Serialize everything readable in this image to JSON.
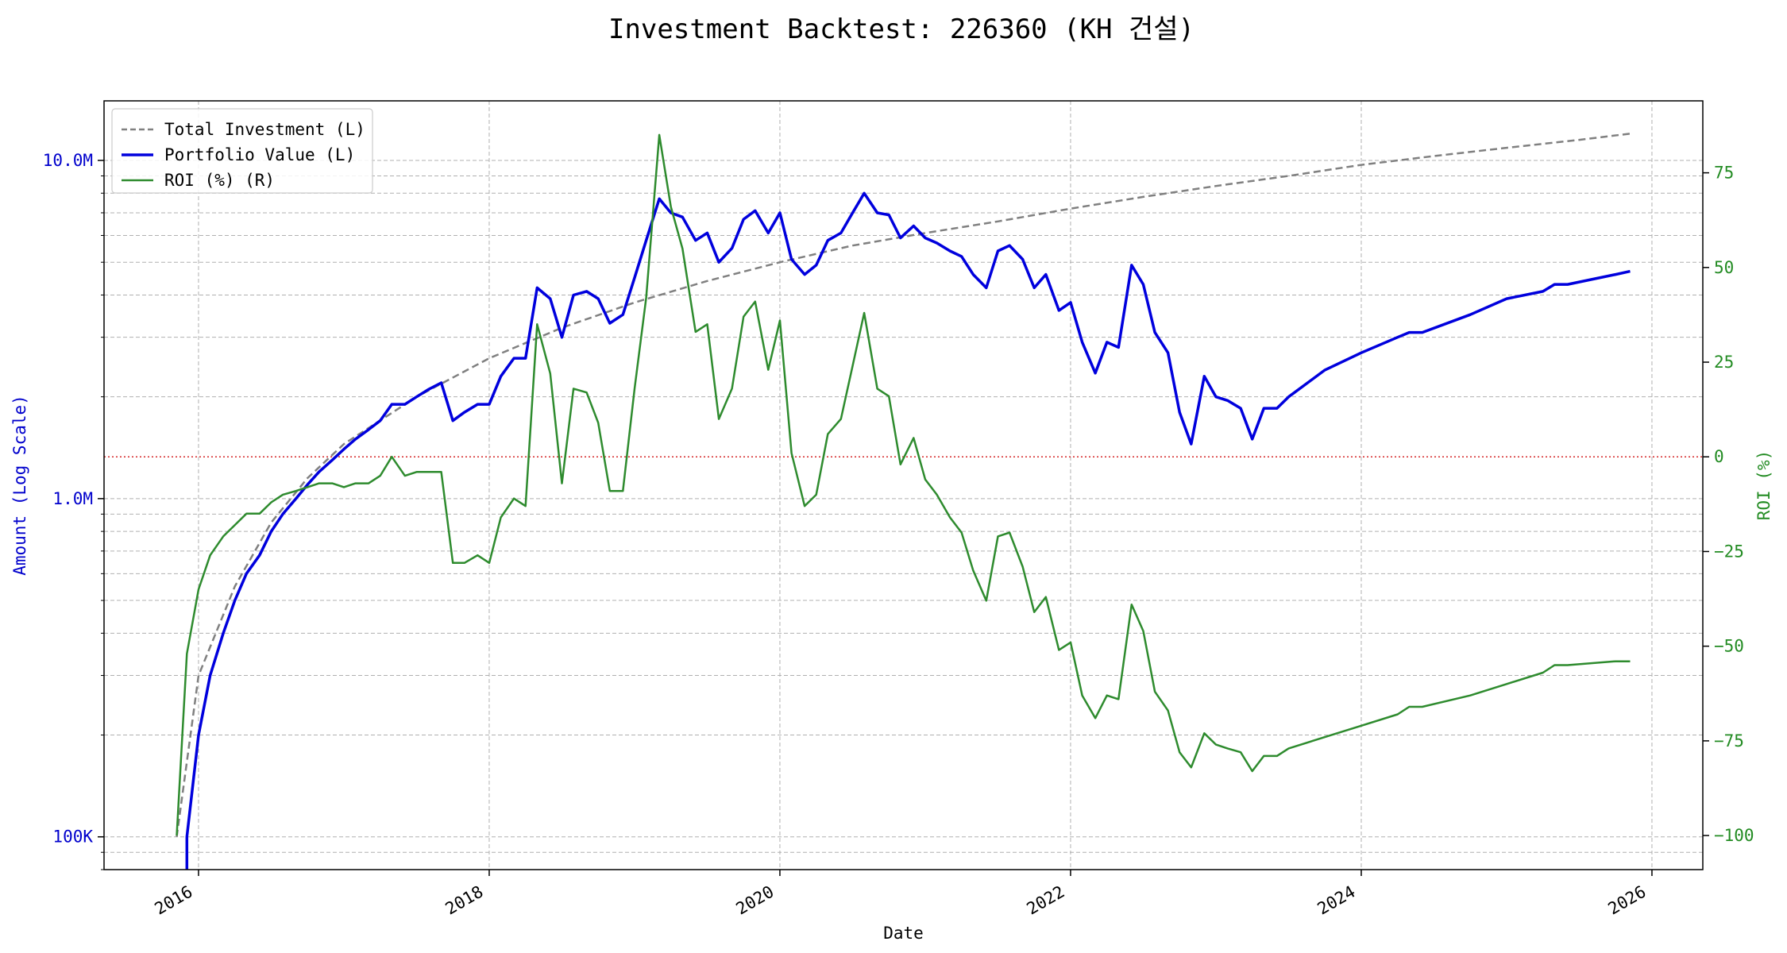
{
  "chart_data": {
    "type": "line",
    "title": "Investment Backtest: 226360 (KH 건설)",
    "xlabel": "Date",
    "ylabel_left": "Amount (Log Scale)",
    "ylabel_right": "ROI (%)",
    "left_scale": "log",
    "ylim_left": [
      80000,
      15000000
    ],
    "ylim_right": [
      -109,
      94
    ],
    "xlim": [
      2015.35,
      2026.35
    ],
    "x_ticks": [
      {
        "value": 2016,
        "label": "2016"
      },
      {
        "value": 2018,
        "label": "2018"
      },
      {
        "value": 2020,
        "label": "2020"
      },
      {
        "value": 2022,
        "label": "2022"
      },
      {
        "value": 2024,
        "label": "2024"
      },
      {
        "value": 2026,
        "label": "2026"
      }
    ],
    "y_left_ticks": [
      {
        "value": 100000,
        "label": "100K"
      },
      {
        "value": 1000000,
        "label": "1.0M"
      },
      {
        "value": 10000000,
        "label": "10.0M"
      }
    ],
    "y_right_ticks": [
      {
        "value": -100,
        "label": "−100"
      },
      {
        "value": -75,
        "label": "−75"
      },
      {
        "value": -50,
        "label": "−50"
      },
      {
        "value": -25,
        "label": "−25"
      },
      {
        "value": 0,
        "label": "0"
      },
      {
        "value": 25,
        "label": "25"
      },
      {
        "value": 50,
        "label": "50"
      },
      {
        "value": 75,
        "label": "75"
      }
    ],
    "grid": true,
    "legend_position": "top-left",
    "reference_line": {
      "axis": "right",
      "value": 0,
      "color": "#d62728"
    },
    "colors": {
      "total_investment": "#808080",
      "portfolio_value": "#0000dd",
      "roi": "#2e8b2e",
      "left_axis": "#0000cc",
      "right_axis": "#228b22"
    },
    "series": [
      {
        "name": "Total Investment (L)",
        "axis": "left",
        "style": "dashed",
        "x": [
          2015.85,
          2016.0,
          2016.25,
          2016.5,
          2016.75,
          2017.0,
          2017.5,
          2018.0,
          2018.5,
          2019.0,
          2019.5,
          2020.0,
          2020.5,
          2021.0,
          2021.5,
          2022.0,
          2022.5,
          2023.0,
          2023.5,
          2024.0,
          2024.5,
          2025.0,
          2025.5,
          2025.85
        ],
        "values": [
          100000,
          300000,
          550000,
          850000,
          1150000,
          1450000,
          2000000,
          2600000,
          3200000,
          3800000,
          4400000,
          5000000,
          5600000,
          6100000,
          6600000,
          7200000,
          7800000,
          8400000,
          9000000,
          9700000,
          10300000,
          10900000,
          11500000,
          12000000
        ]
      },
      {
        "name": "Portfolio Value (L)",
        "axis": "left",
        "style": "solid",
        "x": [
          2015.92,
          2015.92,
          2016.0,
          2016.08,
          2016.17,
          2016.25,
          2016.33,
          2016.42,
          2016.5,
          2016.58,
          2016.67,
          2016.75,
          2016.83,
          2016.92,
          2017.0,
          2017.08,
          2017.17,
          2017.25,
          2017.33,
          2017.42,
          2017.5,
          2017.58,
          2017.67,
          2017.75,
          2017.83,
          2017.92,
          2018.0,
          2018.08,
          2018.17,
          2018.25,
          2018.33,
          2018.42,
          2018.5,
          2018.58,
          2018.67,
          2018.75,
          2018.83,
          2018.92,
          2019.0,
          2019.08,
          2019.17,
          2019.25,
          2019.33,
          2019.42,
          2019.5,
          2019.58,
          2019.67,
          2019.75,
          2019.83,
          2019.92,
          2020.0,
          2020.08,
          2020.17,
          2020.25,
          2020.33,
          2020.42,
          2020.5,
          2020.58,
          2020.67,
          2020.75,
          2020.83,
          2020.92,
          2021.0,
          2021.08,
          2021.17,
          2021.25,
          2021.33,
          2021.42,
          2021.5,
          2021.58,
          2021.67,
          2021.75,
          2021.83,
          2021.92,
          2022.0,
          2022.08,
          2022.17,
          2022.25,
          2022.33,
          2022.42,
          2022.5,
          2022.58,
          2022.67,
          2022.75,
          2022.83,
          2022.92,
          2023.0,
          2023.08,
          2023.17,
          2023.25,
          2023.33,
          2023.42,
          2023.5,
          2023.75,
          2024.0,
          2024.25,
          2024.33,
          2024.42,
          2024.75,
          2025.0,
          2025.25,
          2025.33,
          2025.42,
          2025.75,
          2025.85
        ],
        "values": [
          80000,
          100000,
          200000,
          300000,
          400000,
          500000,
          600000,
          680000,
          800000,
          900000,
          1000000,
          1100000,
          1200000,
          1300000,
          1400000,
          1500000,
          1600000,
          1700000,
          1900000,
          1900000,
          2000000,
          2100000,
          2200000,
          1700000,
          1800000,
          1900000,
          1900000,
          2300000,
          2600000,
          2600000,
          4200000,
          3900000,
          3000000,
          4000000,
          4100000,
          3900000,
          3300000,
          3500000,
          4500000,
          5800000,
          7700000,
          7000000,
          6800000,
          5800000,
          6100000,
          5000000,
          5500000,
          6700000,
          7100000,
          6100000,
          7000000,
          5100000,
          4600000,
          4900000,
          5800000,
          6100000,
          7000000,
          8000000,
          7000000,
          6900000,
          5900000,
          6400000,
          5900000,
          5700000,
          5400000,
          5200000,
          4600000,
          4200000,
          5400000,
          5600000,
          5100000,
          4200000,
          4600000,
          3600000,
          3800000,
          2900000,
          2350000,
          2900000,
          2800000,
          4900000,
          4300000,
          3100000,
          2700000,
          1800000,
          1450000,
          2300000,
          2000000,
          1950000,
          1850000,
          1500000,
          1850000,
          1850000,
          2000000,
          2400000,
          2700000,
          3000000,
          3100000,
          3100000,
          3500000,
          3900000,
          4100000,
          4300000,
          4300000,
          4600000,
          4700000
        ]
      },
      {
        "name": "ROI (%) (R)",
        "axis": "right",
        "style": "solid",
        "x": [
          2015.85,
          2015.92,
          2016.0,
          2016.08,
          2016.17,
          2016.25,
          2016.33,
          2016.42,
          2016.5,
          2016.58,
          2016.67,
          2016.75,
          2016.83,
          2016.92,
          2017.0,
          2017.08,
          2017.17,
          2017.25,
          2017.33,
          2017.42,
          2017.5,
          2017.58,
          2017.67,
          2017.75,
          2017.83,
          2017.92,
          2018.0,
          2018.08,
          2018.17,
          2018.25,
          2018.33,
          2018.42,
          2018.5,
          2018.58,
          2018.67,
          2018.75,
          2018.83,
          2018.92,
          2019.0,
          2019.08,
          2019.17,
          2019.25,
          2019.33,
          2019.42,
          2019.5,
          2019.58,
          2019.67,
          2019.75,
          2019.83,
          2019.92,
          2020.0,
          2020.08,
          2020.17,
          2020.25,
          2020.33,
          2020.42,
          2020.5,
          2020.58,
          2020.67,
          2020.75,
          2020.83,
          2020.92,
          2021.0,
          2021.08,
          2021.17,
          2021.25,
          2021.33,
          2021.42,
          2021.5,
          2021.58,
          2021.67,
          2021.75,
          2021.83,
          2021.92,
          2022.0,
          2022.08,
          2022.17,
          2022.25,
          2022.33,
          2022.42,
          2022.5,
          2022.58,
          2022.67,
          2022.75,
          2022.83,
          2022.92,
          2023.0,
          2023.08,
          2023.17,
          2023.25,
          2023.33,
          2023.42,
          2023.5,
          2023.75,
          2024.0,
          2024.25,
          2024.33,
          2024.42,
          2024.75,
          2025.0,
          2025.25,
          2025.33,
          2025.42,
          2025.75,
          2025.85
        ],
        "values": [
          -100,
          -52,
          -35,
          -26,
          -21,
          -18,
          -15,
          -15,
          -12,
          -10,
          -9,
          -8,
          -7,
          -7,
          -8,
          -7,
          -7,
          -5,
          0,
          -5,
          -4,
          -4,
          -4,
          -28,
          -28,
          -26,
          -28,
          -16,
          -11,
          -13,
          35,
          22,
          -7,
          18,
          17,
          9,
          -9,
          -9,
          18,
          42,
          85,
          66,
          55,
          33,
          35,
          10,
          18,
          37,
          41,
          23,
          36,
          1,
          -13,
          -10,
          6,
          10,
          24,
          38,
          18,
          16,
          -2,
          5,
          -6,
          -10,
          -16,
          -20,
          -30,
          -38,
          -21,
          -20,
          -29,
          -41,
          -37,
          -51,
          -49,
          -63,
          -69,
          -63,
          -64,
          -39,
          -46,
          -62,
          -67,
          -78,
          -82,
          -73,
          -76,
          -77,
          -78,
          -83,
          -79,
          -79,
          -77,
          -74,
          -71,
          -68,
          -66,
          -66,
          -63,
          -60,
          -57,
          -55,
          -55,
          -54,
          -54
        ]
      }
    ]
  }
}
